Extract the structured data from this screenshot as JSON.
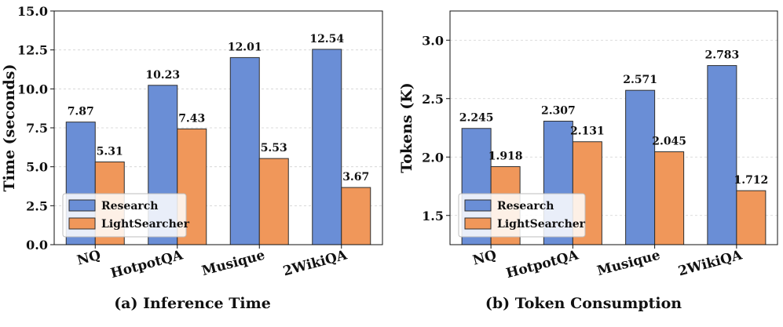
{
  "colors": {
    "research": "#6a8ed6",
    "lightsearcher": "#f0975a",
    "bar_edge": "#2f2f2f",
    "grid": "#d0d0d0",
    "legend_edge": "#bdbdbd"
  },
  "chart_data": [
    {
      "type": "bar",
      "caption": "(a) Inference Time",
      "ylabel": "Time (seconds)",
      "xlabel": "",
      "categories": [
        "NQ",
        "HotpotQA",
        "Musique",
        "2WikiQA"
      ],
      "series": [
        {
          "name": "Research",
          "values": [
            7.87,
            10.23,
            12.01,
            12.54
          ],
          "labels": [
            "7.87",
            "10.23",
            "12.01",
            "12.54"
          ]
        },
        {
          "name": "LightSearcher",
          "values": [
            5.31,
            7.43,
            5.53,
            3.67
          ],
          "labels": [
            "5.31",
            "7.43",
            "5.53",
            "3.67"
          ]
        }
      ],
      "ylim": [
        0,
        15
      ],
      "yticks": [
        0,
        2.5,
        5,
        7.5,
        10,
        12.5,
        15
      ],
      "ytick_labels": [
        "0.0",
        "2.5",
        "5.0",
        "7.5",
        "10.0",
        "12.5",
        "15.0"
      ],
      "grid": true,
      "legend": "bottom-left"
    },
    {
      "type": "bar",
      "caption": "(b) Token Consumption",
      "ylabel": "Tokens (K)",
      "xlabel": "",
      "categories": [
        "NQ",
        "HotpotQA",
        "Musique",
        "2WikiQA"
      ],
      "series": [
        {
          "name": "Research",
          "values": [
            2.245,
            2.307,
            2.571,
            2.783
          ],
          "labels": [
            "2.245",
            "2.307",
            "2.571",
            "2.783"
          ]
        },
        {
          "name": "LightSearcher",
          "values": [
            1.918,
            2.131,
            2.045,
            1.712
          ],
          "labels": [
            "1.918",
            "2.131",
            "2.045",
            "1.712"
          ]
        }
      ],
      "ylim": [
        1.25,
        3.25
      ],
      "yticks": [
        1.5,
        2.0,
        2.5,
        3.0
      ],
      "ytick_labels": [
        "1.5",
        "2.0",
        "2.5",
        "3.0"
      ],
      "grid": true,
      "legend": "bottom-left"
    }
  ]
}
